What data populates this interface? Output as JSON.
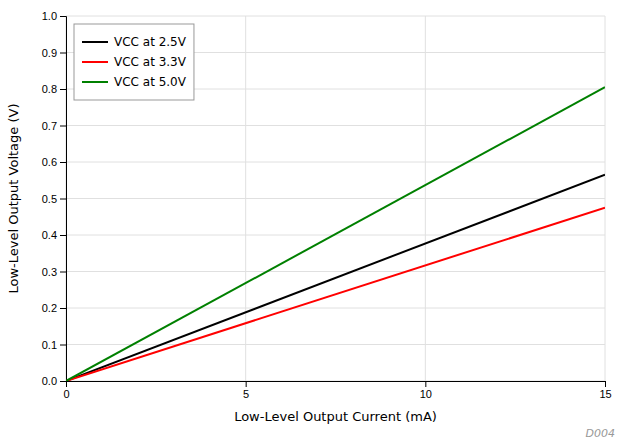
{
  "chart_data": {
    "type": "line",
    "xlabel": "Low-Level Output Current (mA)",
    "ylabel": "Low-Level Output Voltage (V)",
    "x": [
      0,
      15
    ],
    "series": [
      {
        "name": "VCC at 2.5V",
        "color": "#000000",
        "values": [
          0.0,
          0.565
        ]
      },
      {
        "name": "VCC at 3.3V",
        "color": "#ff0000",
        "values": [
          0.0,
          0.475
        ]
      },
      {
        "name": "VCC at 5.0V",
        "color": "#008000",
        "values": [
          0.0,
          0.805
        ]
      }
    ],
    "xlim": [
      0,
      15
    ],
    "ylim": [
      0,
      1
    ],
    "xticks": [
      0,
      5,
      10,
      15
    ],
    "yticks": [
      {
        "value": 0,
        "label": "0.0"
      },
      0.1,
      0.2,
      0.3,
      0.4,
      0.5,
      0.6,
      0.7,
      0.8,
      0.9,
      {
        "value": 1.0,
        "label": "1.0"
      }
    ],
    "grid": true,
    "legend": "upper left",
    "annotations": [
      "D004"
    ]
  }
}
